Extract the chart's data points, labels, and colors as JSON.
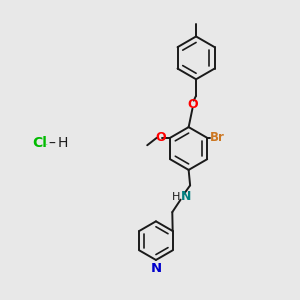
{
  "background_color": "#e8e8e8",
  "bond_color": "#1a1a1a",
  "bond_width": 1.4,
  "O_color": "#ff0000",
  "N_color": "#0000cc",
  "Br_color": "#cc7722",
  "Cl_color": "#00bb00",
  "HN_color": "#008080",
  "figsize": [
    3.0,
    3.0
  ],
  "dpi": 100,
  "xlim": [
    0,
    10
  ],
  "ylim": [
    0,
    10
  ]
}
